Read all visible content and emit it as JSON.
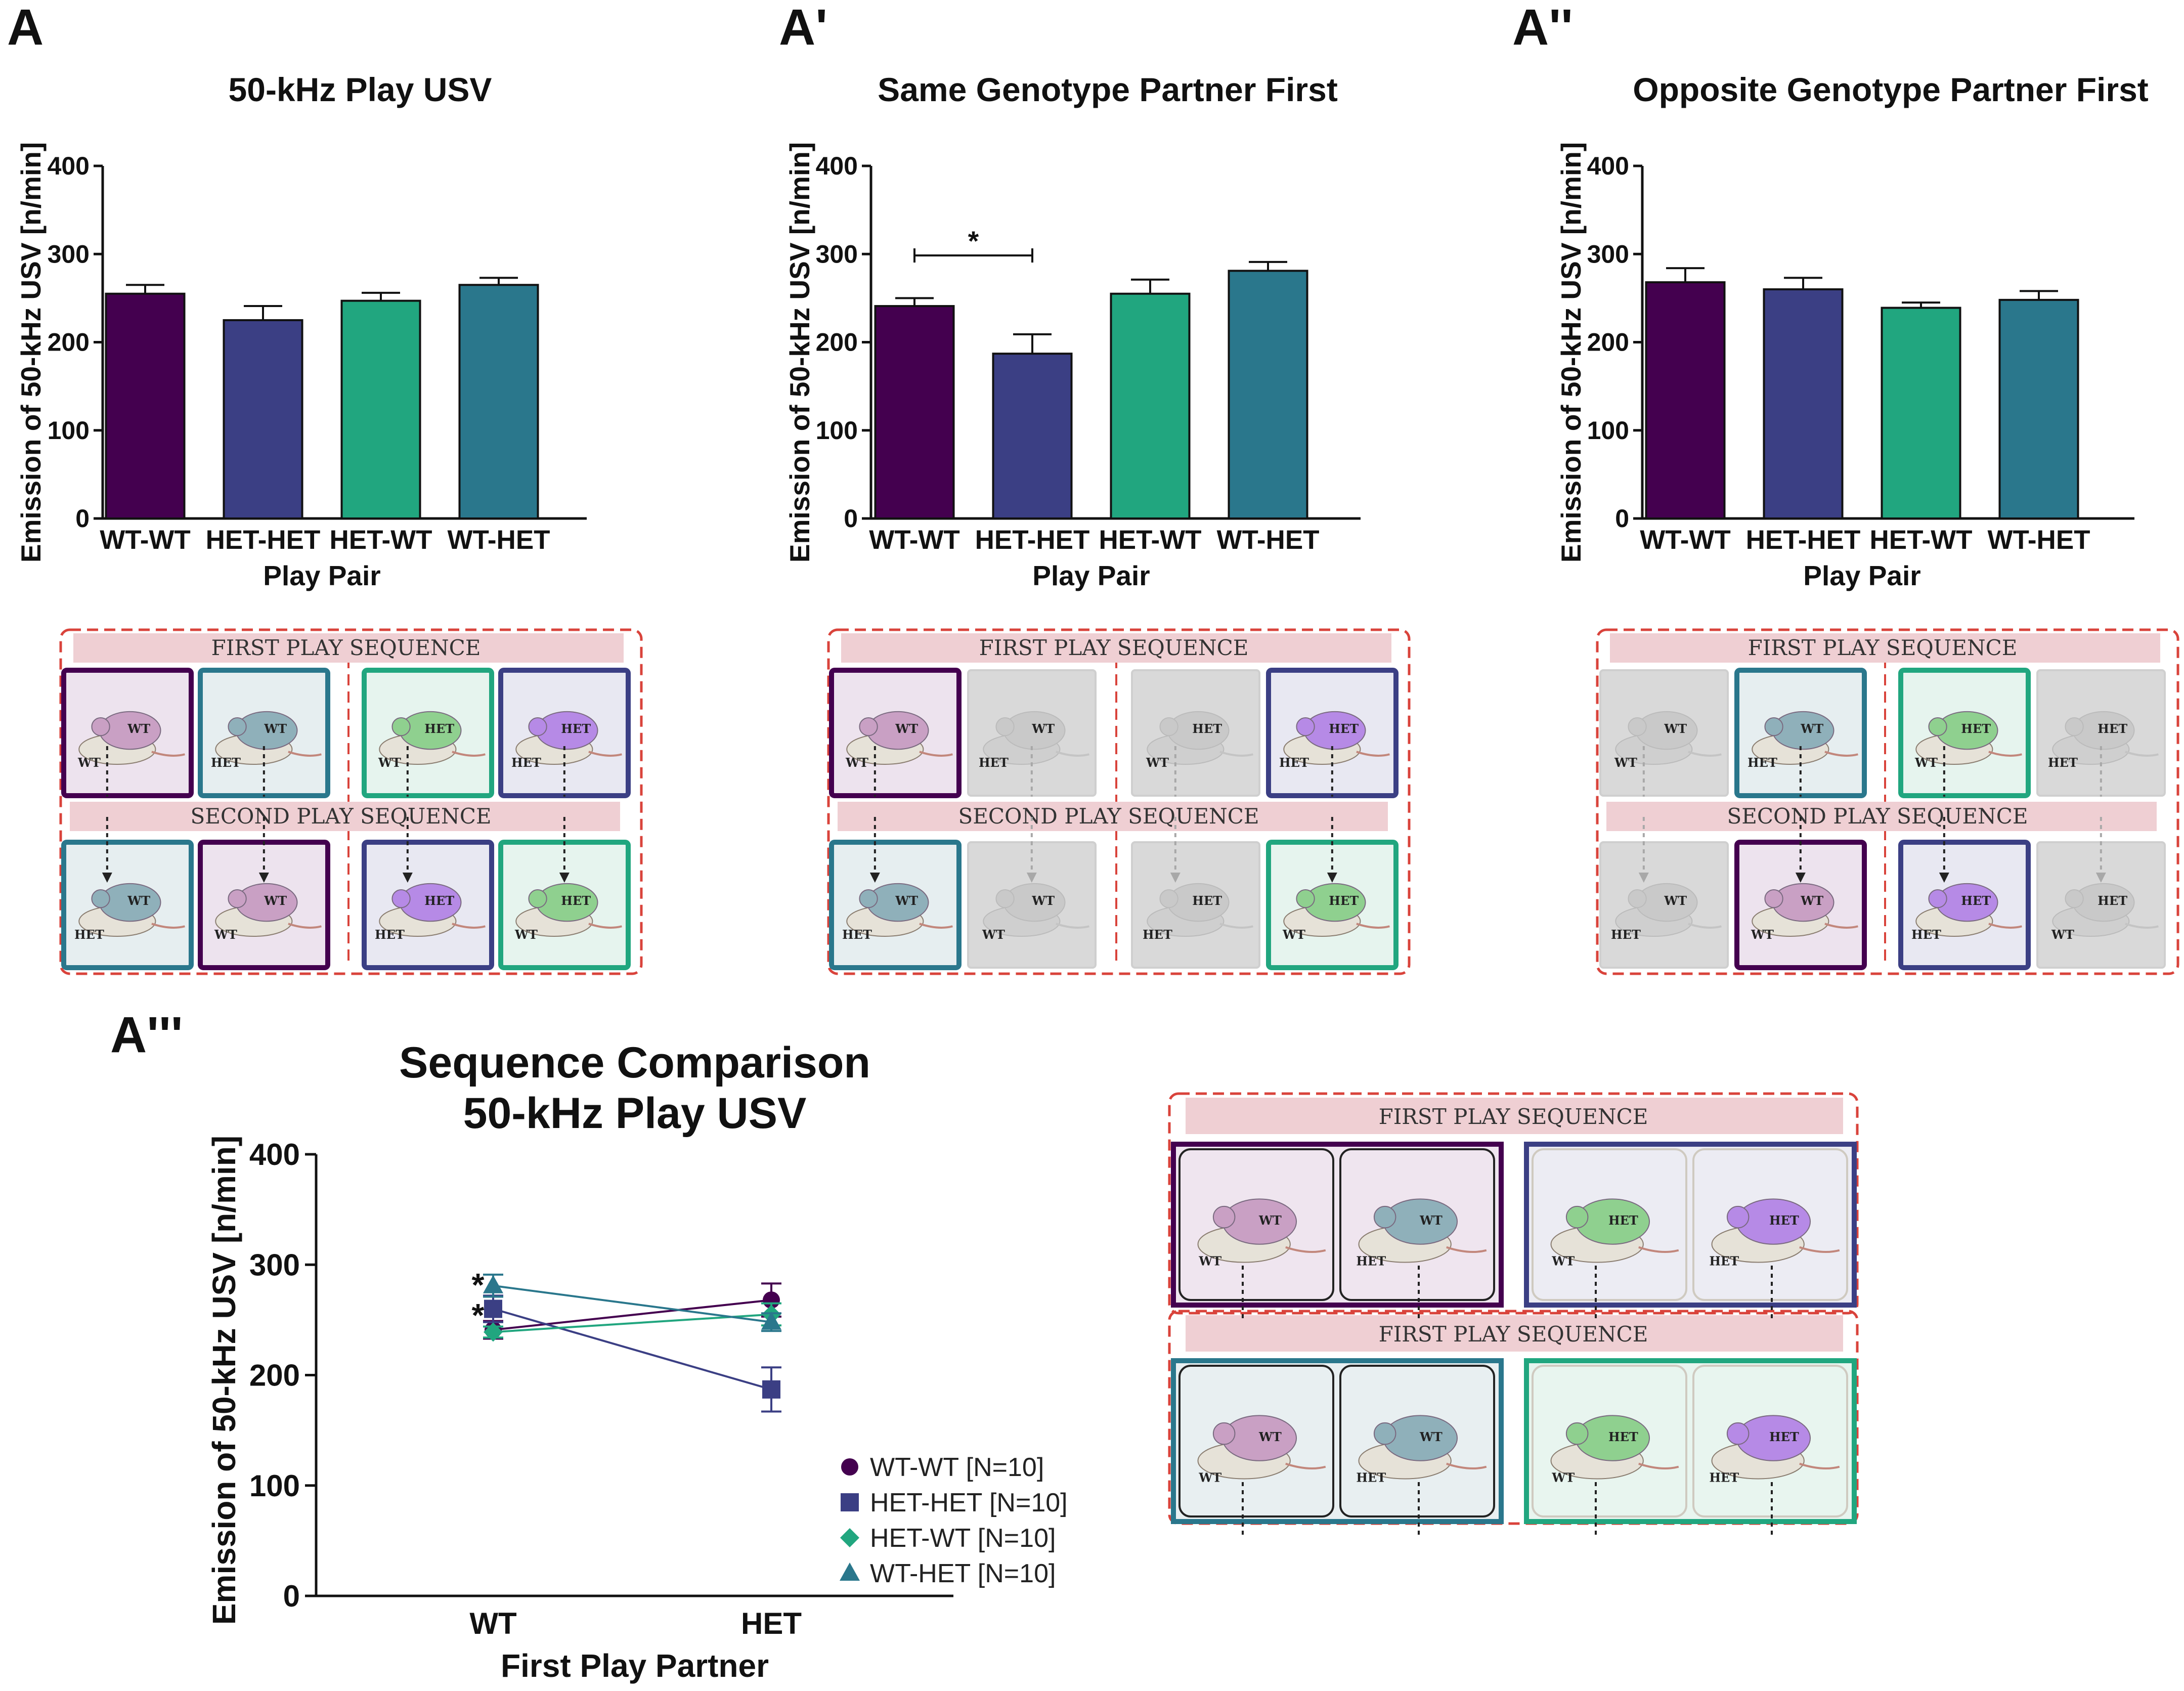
{
  "colors": {
    "WT-WT": "#44004f",
    "HET-HET": "#3b3f84",
    "HET-WT": "#21a67f",
    "WT-HET": "#2a778c",
    "dashed_border": "#d9433b",
    "sequence_banner": "#efcfd3",
    "dimmed_card": "#d9d9d9"
  },
  "panels": {
    "A": {
      "letter": "A"
    },
    "A1": {
      "letter": "A'"
    },
    "A2": {
      "letter": "A''"
    },
    "A3": {
      "letter": "A'''"
    }
  },
  "chart_data": [
    {
      "id": "A",
      "type": "bar",
      "title": "50-kHz Play USV",
      "xlabel": "Play Pair",
      "ylabel": "Emission of 50-kHz USV [n/min]",
      "ylim": [
        0,
        400
      ],
      "yticks": [
        0,
        100,
        200,
        300,
        400
      ],
      "categories": [
        "WT-WT",
        "HET-HET",
        "HET-WT",
        "WT-HET"
      ],
      "values": [
        255,
        225,
        247,
        265
      ],
      "errors": [
        10,
        16,
        9,
        8
      ],
      "significance": []
    },
    {
      "id": "A1",
      "type": "bar",
      "title": "Same Genotype Partner First",
      "xlabel": "Play Pair",
      "ylabel": "Emission of 50-kHz USV [n/min]",
      "ylim": [
        0,
        400
      ],
      "yticks": [
        0,
        100,
        200,
        300,
        400
      ],
      "categories": [
        "WT-WT",
        "HET-HET",
        "HET-WT",
        "WT-HET"
      ],
      "values": [
        241,
        187,
        255,
        281
      ],
      "errors": [
        9,
        22,
        16,
        10
      ],
      "significance": [
        {
          "from": "WT-WT",
          "to": "HET-HET",
          "label": "*"
        }
      ]
    },
    {
      "id": "A2",
      "type": "bar",
      "title": "Opposite Genotype Partner First",
      "xlabel": "Play Pair",
      "ylabel": "Emission of 50-kHz USV [n/min]",
      "ylim": [
        0,
        400
      ],
      "yticks": [
        0,
        100,
        200,
        300,
        400
      ],
      "categories": [
        "WT-WT",
        "HET-HET",
        "HET-WT",
        "WT-HET"
      ],
      "values": [
        268,
        260,
        239,
        248
      ],
      "errors": [
        16,
        13,
        6,
        10
      ],
      "significance": []
    },
    {
      "id": "A3",
      "type": "line",
      "title_lines": [
        "Sequence Comparison",
        "50-kHz Play USV"
      ],
      "xlabel": "First Play Partner",
      "ylabel": "Emission of 50-kHz USV [n/min]",
      "ylim": [
        0,
        400
      ],
      "yticks": [
        0,
        100,
        200,
        300,
        400
      ],
      "x": [
        "WT",
        "HET"
      ],
      "series": [
        {
          "name": "WT-WT [N=10]",
          "key": "WT-WT",
          "marker": "circle",
          "values": [
            241,
            268
          ],
          "errors": [
            8,
            15
          ]
        },
        {
          "name": "HET-HET [N=10]",
          "key": "HET-HET",
          "marker": "square",
          "values": [
            260,
            187
          ],
          "errors": [
            12,
            20
          ]
        },
        {
          "name": "HET-WT [N=10]",
          "key": "HET-WT",
          "marker": "diamond",
          "values": [
            239,
            255
          ],
          "errors": [
            5,
            10
          ]
        },
        {
          "name": "WT-HET [N=10]",
          "key": "WT-HET",
          "marker": "triangle",
          "values": [
            281,
            248
          ],
          "errors": [
            10,
            8
          ]
        }
      ],
      "annotations": [
        "*",
        "*"
      ]
    }
  ],
  "schematics": [
    {
      "id": "S-A",
      "first_label": "FIRST PLAY SEQUENCE",
      "second_label": "SECOND PLAY SEQUENCE",
      "first": [
        {
          "key": "WT-WT",
          "top": "WT",
          "bottom": "WT",
          "active": true
        },
        {
          "key": "WT-HET",
          "top": "WT",
          "bottom": "HET",
          "active": true
        },
        {
          "key": "HET-WT",
          "top": "HET",
          "bottom": "WT",
          "active": true
        },
        {
          "key": "HET-HET",
          "top": "HET",
          "bottom": "HET",
          "active": true
        }
      ],
      "second": [
        {
          "key": "WT-HET",
          "top": "WT",
          "bottom": "HET",
          "active": true
        },
        {
          "key": "WT-WT",
          "top": "WT",
          "bottom": "WT",
          "active": true
        },
        {
          "key": "HET-HET",
          "top": "HET",
          "bottom": "HET",
          "active": true
        },
        {
          "key": "HET-WT",
          "top": "HET",
          "bottom": "WT",
          "active": true
        }
      ]
    },
    {
      "id": "S-A1",
      "first_label": "FIRST PLAY SEQUENCE",
      "second_label": "SECOND PLAY SEQUENCE",
      "first": [
        {
          "key": "WT-WT",
          "top": "WT",
          "bottom": "WT",
          "active": true
        },
        {
          "key": "WT-HET",
          "top": "WT",
          "bottom": "HET",
          "active": false
        },
        {
          "key": "HET-WT",
          "top": "HET",
          "bottom": "WT",
          "active": false
        },
        {
          "key": "HET-HET",
          "top": "HET",
          "bottom": "HET",
          "active": true
        }
      ],
      "second": [
        {
          "key": "WT-HET",
          "top": "WT",
          "bottom": "HET",
          "active": true
        },
        {
          "key": "WT-WT",
          "top": "WT",
          "bottom": "WT",
          "active": false
        },
        {
          "key": "HET-HET",
          "top": "HET",
          "bottom": "HET",
          "active": false
        },
        {
          "key": "HET-WT",
          "top": "HET",
          "bottom": "WT",
          "active": true
        }
      ]
    },
    {
      "id": "S-A2",
      "first_label": "FIRST PLAY SEQUENCE",
      "second_label": "SECOND PLAY SEQUENCE",
      "first": [
        {
          "key": "WT-WT",
          "top": "WT",
          "bottom": "WT",
          "active": false
        },
        {
          "key": "WT-HET",
          "top": "WT",
          "bottom": "HET",
          "active": true
        },
        {
          "key": "HET-WT",
          "top": "HET",
          "bottom": "WT",
          "active": true
        },
        {
          "key": "HET-HET",
          "top": "HET",
          "bottom": "HET",
          "active": false
        }
      ],
      "second": [
        {
          "key": "WT-HET",
          "top": "WT",
          "bottom": "HET",
          "active": false
        },
        {
          "key": "WT-WT",
          "top": "WT",
          "bottom": "WT",
          "active": true
        },
        {
          "key": "HET-HET",
          "top": "HET",
          "bottom": "HET",
          "active": true
        },
        {
          "key": "HET-WT",
          "top": "HET",
          "bottom": "WT",
          "active": false
        }
      ]
    }
  ],
  "big_schematic": {
    "row1_label": "FIRST PLAY SEQUENCE",
    "row2_label": "FIRST PLAY SEQUENCE",
    "rows": [
      [
        {
          "frame": "WT-WT",
          "cells": [
            {
              "top": "WT",
              "bottom": "WT",
              "key": "WT-WT"
            },
            {
              "top": "WT",
              "bottom": "HET",
              "key": "WT-HET"
            }
          ]
        },
        {
          "frame": "HET-HET",
          "cells": [
            {
              "top": "HET",
              "bottom": "WT",
              "key": "HET-WT"
            },
            {
              "top": "HET",
              "bottom": "HET",
              "key": "HET-HET"
            }
          ]
        }
      ],
      [
        {
          "frame": "WT-HET",
          "cells": [
            {
              "top": "WT",
              "bottom": "WT",
              "key": "WT-WT"
            },
            {
              "top": "WT",
              "bottom": "HET",
              "key": "WT-HET"
            }
          ]
        },
        {
          "frame": "HET-WT",
          "cells": [
            {
              "top": "HET",
              "bottom": "WT",
              "key": "HET-WT"
            },
            {
              "top": "HET",
              "bottom": "HET",
              "key": "HET-HET"
            }
          ]
        }
      ]
    ]
  }
}
